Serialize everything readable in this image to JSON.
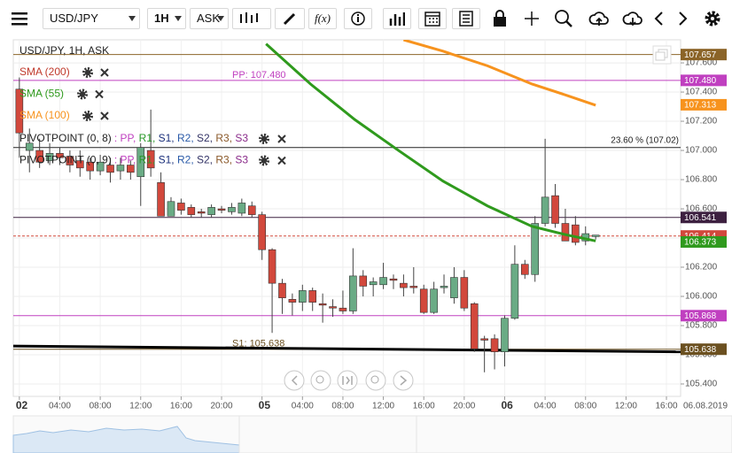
{
  "toolbar": {
    "symbol": "USD/JPY",
    "interval": "1H",
    "price_type": "ASK",
    "fx": "f(x)"
  },
  "chart_data": {
    "type": "candlestick",
    "title": "USD/JPY, 1H, ASK",
    "x": [
      0,
      1,
      2,
      3,
      4,
      5,
      6,
      7,
      8,
      9,
      10,
      11,
      12,
      13,
      14,
      15,
      16,
      17,
      18,
      19,
      20,
      21,
      22,
      23,
      24,
      25,
      26,
      27,
      28,
      29,
      30,
      31,
      32,
      33,
      34,
      35,
      36,
      37,
      38,
      39,
      40,
      41,
      42,
      43,
      44,
      45,
      46,
      47,
      48,
      49,
      50,
      51,
      52,
      53,
      54,
      55,
      56,
      57
    ],
    "open": [
      107.42,
      107.0,
      107.0,
      106.93,
      106.98,
      106.96,
      106.93,
      106.92,
      106.86,
      106.9,
      106.86,
      106.9,
      106.82,
      107.0,
      106.78,
      106.55,
      106.64,
      106.61,
      106.58,
      106.56,
      106.6,
      106.58,
      106.57,
      106.62,
      106.56,
      106.32,
      106.09,
      105.98,
      105.96,
      106.04,
      105.95,
      105.93,
      105.92,
      105.9,
      106.14,
      106.08,
      106.08,
      106.12,
      106.09,
      106.07,
      106.05,
      105.89,
      106.06,
      105.99,
      106.13,
      105.95,
      105.71,
      105.71,
      105.62,
      105.85,
      106.22,
      106.15,
      106.5,
      106.69,
      106.5,
      106.49,
      106.38,
      106.41
    ],
    "high": [
      107.5,
      107.15,
      107.08,
      107.05,
      107.02,
      107.0,
      107.0,
      106.95,
      106.97,
      106.95,
      106.95,
      106.93,
      107.05,
      107.28,
      106.85,
      106.68,
      106.67,
      106.63,
      106.6,
      106.63,
      106.62,
      106.64,
      106.67,
      106.65,
      106.58,
      106.33,
      106.12,
      106.02,
      106.08,
      106.06,
      106.02,
      105.98,
      106.04,
      106.33,
      106.18,
      106.13,
      106.23,
      106.15,
      106.15,
      106.2,
      106.08,
      106.1,
      106.15,
      106.2,
      106.18,
      105.96,
      105.73,
      105.74,
      105.87,
      106.35,
      106.25,
      106.55,
      107.08,
      106.77,
      106.6,
      106.55,
      106.48,
      106.42
    ],
    "low": [
      106.95,
      106.85,
      106.88,
      106.9,
      106.9,
      106.85,
      106.82,
      106.8,
      106.83,
      106.78,
      106.8,
      106.8,
      106.62,
      106.82,
      106.55,
      106.55,
      106.56,
      106.54,
      106.54,
      106.54,
      106.57,
      106.56,
      106.55,
      106.54,
      106.25,
      105.75,
      105.88,
      105.87,
      105.9,
      105.9,
      105.82,
      105.86,
      105.88,
      105.88,
      106.0,
      106.0,
      106.05,
      106.05,
      106.0,
      106.02,
      105.88,
      105.88,
      106.02,
      105.95,
      105.9,
      105.62,
      105.48,
      105.5,
      105.52,
      105.84,
      106.12,
      106.1,
      106.48,
      106.47,
      106.38,
      106.35,
      106.35,
      106.39
    ],
    "close": [
      107.12,
      107.05,
      106.92,
      106.98,
      106.95,
      106.9,
      106.88,
      106.86,
      106.92,
      106.85,
      106.9,
      106.85,
      107.02,
      106.88,
      106.55,
      106.65,
      106.59,
      106.56,
      106.57,
      106.61,
      106.59,
      106.61,
      106.64,
      106.56,
      106.32,
      106.09,
      105.99,
      105.96,
      106.04,
      105.96,
      105.94,
      105.92,
      105.9,
      106.14,
      106.07,
      106.1,
      106.13,
      106.11,
      106.06,
      106.06,
      105.89,
      106.05,
      106.07,
      106.13,
      105.92,
      105.64,
      105.7,
      105.62,
      105.85,
      106.22,
      106.15,
      106.5,
      106.68,
      106.5,
      106.38,
      106.37,
      106.43,
      106.42
    ],
    "up_color": "#6aab85",
    "down_color": "#d2483c",
    "xlim": [
      -0.6,
      65.4
    ],
    "xticks": [
      {
        "value": 0,
        "label": "02"
      },
      {
        "value": 4,
        "label": "04:00"
      },
      {
        "value": 8,
        "label": "08:00"
      },
      {
        "value": 12,
        "label": "12:00"
      },
      {
        "value": 16,
        "label": "16:00"
      },
      {
        "value": 20,
        "label": "20:00"
      },
      {
        "value": 24,
        "label": "05"
      },
      {
        "value": 28,
        "label": "04:00"
      },
      {
        "value": 32,
        "label": "08:00"
      },
      {
        "value": 36,
        "label": "12:00"
      },
      {
        "value": 40,
        "label": "16:00"
      },
      {
        "value": 44,
        "label": "20:00"
      },
      {
        "value": 48,
        "label": "06"
      },
      {
        "value": 52,
        "label": "04:00"
      },
      {
        "value": 56,
        "label": "08:00"
      },
      {
        "value": 60,
        "label": "12:00"
      },
      {
        "value": 64,
        "label": "16:00"
      }
    ],
    "date_label": "06.08.2019",
    "ylim": [
      105.315,
      107.758
    ],
    "yticks": [
      {
        "value": 105.4,
        "label": "105.400"
      },
      {
        "value": 105.6,
        "label": "105.600"
      },
      {
        "value": 105.8,
        "label": "105.800"
      },
      {
        "value": 106,
        "label": "106.000"
      },
      {
        "value": 106.2,
        "label": "106.200"
      },
      {
        "value": 106.4,
        "label": "106.400"
      },
      {
        "value": 106.6,
        "label": "106.600"
      },
      {
        "value": 106.8,
        "label": "106.800"
      },
      {
        "value": 107,
        "label": "107.000"
      },
      {
        "value": 107.2,
        "label": "107.200"
      },
      {
        "value": 107.4,
        "label": "107.400"
      },
      {
        "value": 107.6,
        "label": "107.600"
      }
    ],
    "grid": true,
    "indicators": [
      {
        "name": "SMA (200)",
        "color": "#c0392b"
      },
      {
        "name": "SMA (55)",
        "color": "#2f9a1d",
        "x": [
          24.4,
          28.8,
          33.2,
          37.5,
          41.9,
          46.3,
          50.7,
          54.2,
          57
        ],
        "values": [
          107.73,
          107.455,
          107.21,
          107.0,
          106.79,
          106.62,
          106.48,
          106.42,
          106.38
        ]
      },
      {
        "name": "SMA (100)",
        "color": "#f7931e",
        "x": [
          38,
          41.9,
          46.3,
          50.7,
          54.2,
          57
        ],
        "values": [
          107.758,
          107.68,
          107.58,
          107.455,
          107.376,
          107.31
        ]
      }
    ],
    "pivots": [
      {
        "name": "PIVOTPOINT (0, 8)",
        "items": [
          ": PP,",
          " R1,",
          " S1,",
          " R2,",
          " S2,",
          " R3,",
          " S3"
        ]
      },
      {
        "name": "PIVOTPOINT (0, 9)",
        "items": [
          ": PP,",
          " R1,",
          " S1,",
          " R2,",
          " S2,",
          " R3,",
          " S3"
        ]
      }
    ],
    "pivot_colors": [
      "#c040c0",
      "#2a9a2a",
      "#1a2f7a",
      "#2a5aa8",
      "#333366",
      "#8b5a2b",
      "#8a2b8a"
    ],
    "levels": [
      {
        "value": 107.657,
        "label": "107.657",
        "color": "#8b6428",
        "line": "solid"
      },
      {
        "value": 107.48,
        "label": "107.480",
        "color": "#c040c0",
        "line": "solid"
      },
      {
        "value": 107.313,
        "label": "107.313",
        "color": "#f7931e",
        "line": "none"
      },
      {
        "value": 107.02,
        "color": "#222222",
        "line": "solid"
      },
      {
        "value": 106.541,
        "label": "106.541",
        "color": "#3d2040",
        "line": "solid"
      },
      {
        "value": 106.414,
        "label": "106.414",
        "color": "#d2483c",
        "line": "dashed"
      },
      {
        "value": 106.373,
        "label": "106.373",
        "color": "#2f9a1d",
        "line": "none"
      },
      {
        "value": 105.868,
        "label": "105.868",
        "color": "#c040c0",
        "line": "solid"
      },
      {
        "value": 105.638,
        "label": "105.638",
        "color": "#6b5020",
        "line": "solid"
      }
    ],
    "trendline": {
      "x": [
        -0.6,
        65.4
      ],
      "values": [
        105.66,
        105.62
      ],
      "color": "#000000"
    },
    "annotations": [
      {
        "text": "PP: 107.480",
        "level": 1
      },
      {
        "text": "S1: 105.638",
        "level": 8
      },
      {
        "text": "23.60 % (107.02)",
        "level": 3
      }
    ]
  }
}
